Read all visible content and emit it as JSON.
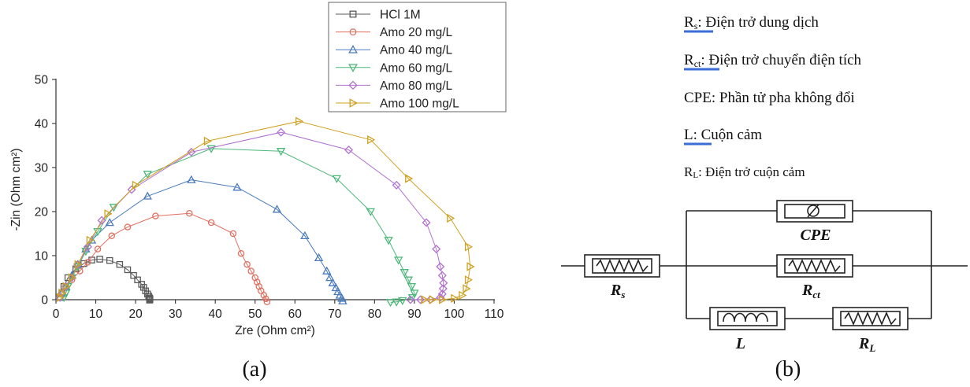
{
  "chart_data": {
    "type": "scatter",
    "xlabel": "Zre (Ohm cm²)",
    "ylabel": "-Zin (Ohm cm²)",
    "xlim": [
      0,
      110
    ],
    "ylim": [
      0,
      50
    ],
    "xticks": [
      "0",
      "10",
      "20",
      "30",
      "40",
      "50",
      "60",
      "70",
      "80",
      "90",
      "100",
      "110"
    ],
    "yticks": [
      "0",
      "10",
      "20",
      "30",
      "40",
      "50"
    ],
    "grid": false,
    "legend_position": "top-right",
    "series": [
      {
        "name": "HCl 1M",
        "color": "#5a5a5a",
        "marker": "square",
        "x": [
          1,
          1.5,
          2,
          3,
          5,
          7,
          9,
          11,
          13.5,
          16,
          18,
          19.5,
          20.5,
          21.5,
          22,
          22.5,
          23,
          23.3,
          23.5,
          23.6,
          23.6,
          23.5
        ],
        "y": [
          0.5,
          1.5,
          3,
          5,
          7,
          8.2,
          9,
          9.2,
          8.9,
          8,
          6.8,
          5.5,
          4.5,
          3.5,
          2.8,
          2,
          1.3,
          0.8,
          0.4,
          0.2,
          0,
          -0.1
        ]
      },
      {
        "name": "Amo 20 mg/L",
        "color": "#e07060",
        "marker": "circle",
        "x": [
          1,
          1.5,
          2.5,
          4,
          6,
          8,
          10.5,
          14,
          18,
          25,
          33.5,
          39,
          44.5,
          46.5,
          48,
          49,
          50,
          50.5,
          51,
          51.5,
          52.2,
          52.7,
          53
        ],
        "y": [
          0.5,
          1.5,
          3,
          4.5,
          6.5,
          8.5,
          11.5,
          14.5,
          16.5,
          19,
          19.6,
          17.5,
          15,
          10.5,
          8,
          6.5,
          5,
          4,
          3,
          2,
          1,
          0.2,
          -0.5
        ]
      },
      {
        "name": "Amo 40 mg/L",
        "color": "#4a7bbd",
        "marker": "triangle-up",
        "x": [
          1,
          1.5,
          2.5,
          4,
          5.5,
          7.5,
          9,
          13.5,
          23,
          34,
          45.5,
          55.5,
          62.5,
          66,
          68,
          68.8,
          69.5,
          70.3,
          70.8,
          71.3,
          71.8,
          72
        ],
        "y": [
          0.5,
          1.5,
          3,
          5.5,
          8,
          11.5,
          13.5,
          17.5,
          23.5,
          27.2,
          25.5,
          20.5,
          14.5,
          9.5,
          6.5,
          5,
          3.8,
          2.7,
          1.8,
          1,
          0.3,
          -0.3
        ]
      },
      {
        "name": "Amo 60 mg/L",
        "color": "#4cb87a",
        "marker": "triangle-down",
        "x": [
          2,
          2.5,
          3,
          4,
          5.5,
          7.5,
          10.5,
          14.5,
          23,
          39,
          56.5,
          70.5,
          79,
          83.5,
          86,
          87.5,
          88.5,
          89.3,
          90,
          89.5,
          87,
          85.5,
          84
        ],
        "y": [
          0.5,
          1.5,
          3,
          5,
          7.5,
          11,
          15.5,
          21,
          28.5,
          34.3,
          33.7,
          27.5,
          20,
          13.5,
          9,
          6.2,
          4.5,
          3,
          1.5,
          0.5,
          -0.2,
          -0.5,
          -0.6
        ]
      },
      {
        "name": "Amo 80 mg/L",
        "color": "#b070d0",
        "marker": "diamond",
        "x": [
          1,
          1.5,
          2.5,
          4,
          5.5,
          8,
          11.5,
          19,
          34,
          56.5,
          73.5,
          85.5,
          93,
          95.5,
          96.5,
          97,
          97.3,
          97.2,
          97,
          96.5,
          94,
          91.5,
          89
        ],
        "y": [
          0.5,
          1.5,
          3,
          5,
          8,
          12,
          18,
          25,
          33.5,
          38,
          34,
          26,
          17.5,
          11.5,
          7.5,
          5.5,
          3.8,
          2.5,
          1.3,
          0.5,
          0,
          0,
          0
        ]
      },
      {
        "name": "Amo 100 mg/L",
        "color": "#d0a020",
        "marker": "triangle-right",
        "x": [
          1,
          1.5,
          2.5,
          4,
          5.5,
          8.5,
          13,
          20,
          38,
          61,
          79,
          88.5,
          99,
          103.5,
          104,
          103.5,
          103,
          102,
          100,
          97,
          94.5,
          92.5
        ],
        "y": [
          0.5,
          1.5,
          3,
          5,
          8,
          13.5,
          19.5,
          26,
          36,
          40.5,
          36.3,
          27.5,
          18.5,
          12,
          7.5,
          4.5,
          2.5,
          1,
          0.3,
          0,
          0,
          0
        ]
      }
    ]
  },
  "panel_a_label": "(a)",
  "panel_b_label": "(b)",
  "legend_b": {
    "rs_symbol": "Rs",
    "rs_sub": "s",
    "rs_desc": ": Điện trở dung dịch",
    "rct_desc": ": Điện trở chuyển điện tích",
    "cpe_text": "CPE: Phần tử pha không đổi",
    "l_symbol": "L",
    "l_desc": ": Cuộn cảm",
    "rl_desc": ": Điện trở cuộn cảm"
  },
  "circuit": {
    "cpe_label": "CPE",
    "rs_label": "R",
    "rs_sub": "s",
    "rct_label": "R",
    "rct_sub": "ct",
    "l_label": "L",
    "rl_label": "R",
    "rl_sub": "L"
  }
}
